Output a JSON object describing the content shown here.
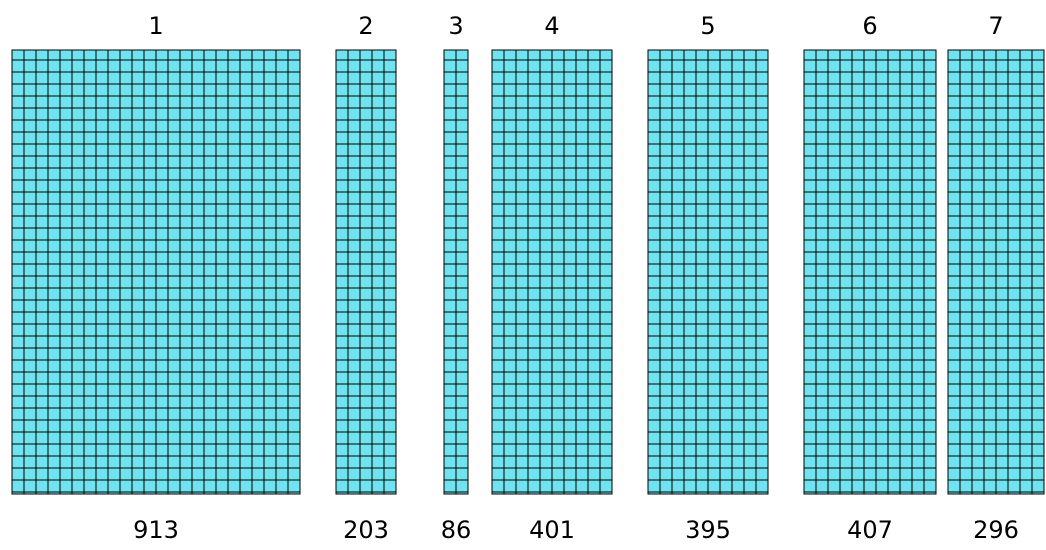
{
  "chart_data": {
    "type": "bar",
    "description_style": "square-unit grid columns (each small square is one unit)",
    "categories": [
      "1",
      "2",
      "3",
      "4",
      "5",
      "6",
      "7"
    ],
    "values": [
      913,
      203,
      86,
      401,
      395,
      407,
      296
    ],
    "grid": true,
    "colors": {
      "fill": "#6fe3ef",
      "stroke": "#000000"
    }
  }
}
